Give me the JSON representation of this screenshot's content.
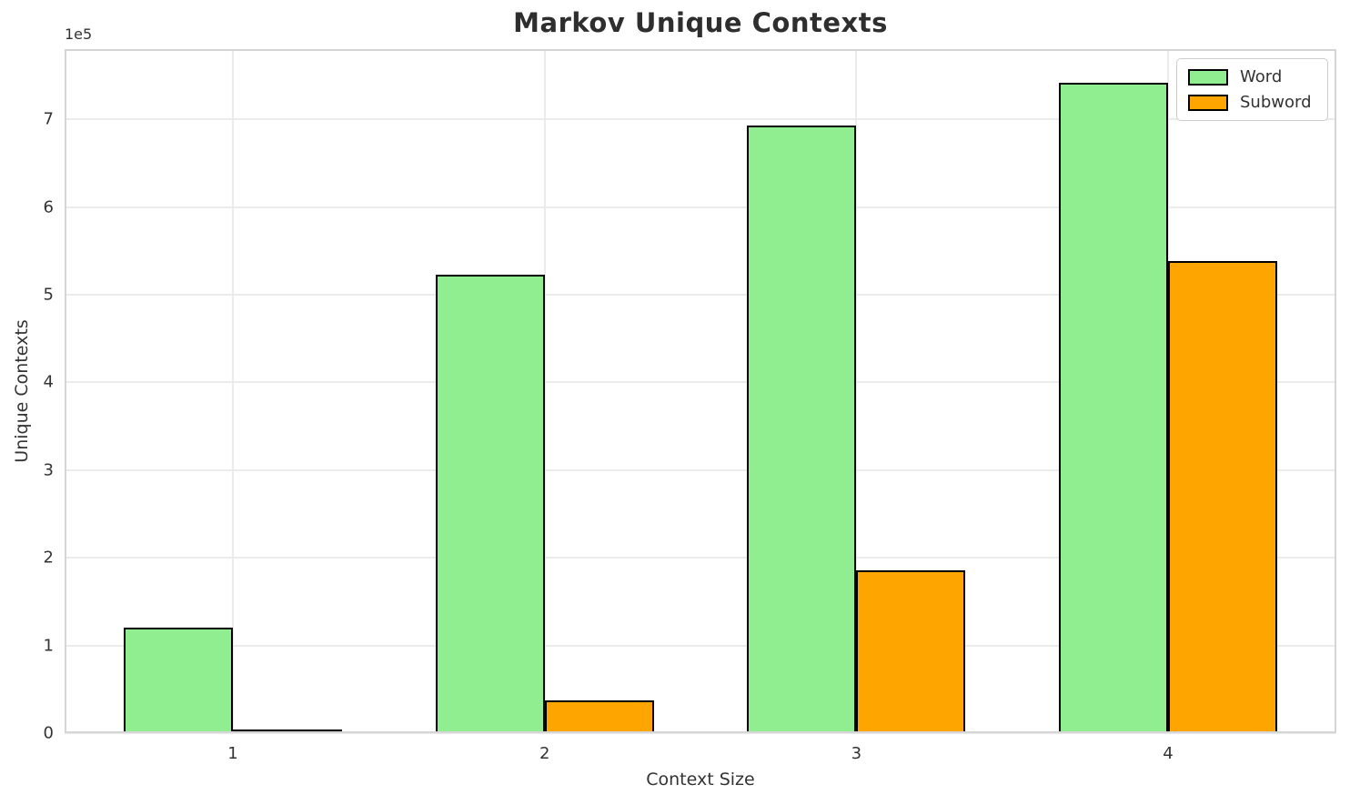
{
  "chart_data": {
    "type": "bar",
    "title": "Markov Unique Contexts",
    "xlabel": "Context Size",
    "ylabel": "Unique Contexts",
    "y_offset_label": "1e5",
    "categories": [
      "1",
      "2",
      "3",
      "4"
    ],
    "x_tick_positions": [
      1,
      2,
      3,
      4
    ],
    "series": [
      {
        "name": "Word",
        "color": "#90EE90",
        "values": [
          120000,
          523000,
          693000,
          742000
        ]
      },
      {
        "name": "Subword",
        "color": "#FFA500",
        "values": [
          2000,
          37000,
          186000,
          538000
        ]
      }
    ],
    "bar_edge_color": "#000000",
    "bar_width": 0.35,
    "xlim": [
      0.46,
      4.54
    ],
    "ylim": [
      0,
      780000
    ],
    "y_ticks": [
      0,
      1,
      2,
      3,
      4,
      5,
      6,
      7
    ],
    "y_scale": 100000,
    "grid": true,
    "legend_position": "upper right",
    "colors": {
      "title_text": "#2e2e2e",
      "axis_text": "#333333",
      "grid": "#ebebeb",
      "spine": "#d5d5d5",
      "background": "#ffffff"
    }
  }
}
